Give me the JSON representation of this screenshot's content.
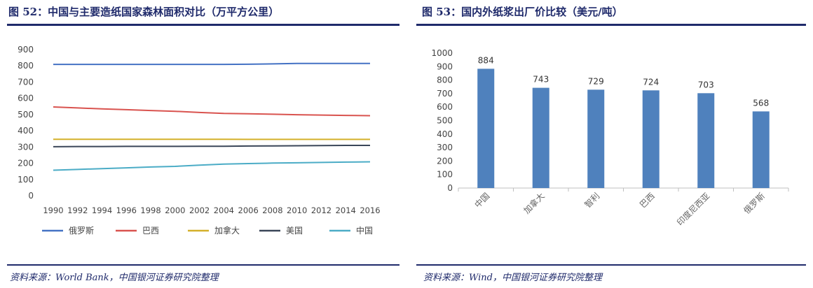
{
  "left_panel": {
    "title": "图 52：中国与主要造纸国家森林面积对比（万平方公里）",
    "source": "资料来源：World Bank，中国银河证券研究院整理"
  },
  "right_panel": {
    "title": "图 53：国内外纸浆出厂价比较（美元/吨）",
    "source": "资料来源：Wind，中国银河证券研究院整理"
  },
  "chart_data": [
    {
      "type": "line",
      "title": "",
      "xlabel": "",
      "ylabel": "",
      "ylim": [
        0,
        900
      ],
      "yticks": [
        0,
        100,
        200,
        300,
        400,
        500,
        600,
        700,
        800,
        900
      ],
      "x": [
        1990,
        1992,
        1994,
        1996,
        1998,
        2000,
        2002,
        2004,
        2006,
        2008,
        2010,
        2012,
        2014,
        2016
      ],
      "legend_position": "bottom",
      "grid": false,
      "series": [
        {
          "name": "俄罗斯",
          "color": "#4472c4",
          "values": [
            809,
            809,
            809,
            809,
            809,
            809,
            809,
            809,
            810,
            812,
            815,
            815,
            815,
            815
          ]
        },
        {
          "name": "巴西",
          "color": "#d9534f",
          "values": [
            547,
            541,
            535,
            530,
            525,
            520,
            513,
            507,
            505,
            502,
            499,
            497,
            495,
            493
          ]
        },
        {
          "name": "加拿大",
          "color": "#d4b02a",
          "values": [
            348,
            348,
            348,
            348,
            348,
            348,
            348,
            348,
            347,
            347,
            347,
            347,
            347,
            347
          ]
        },
        {
          "name": "美国",
          "color": "#3a4658",
          "values": [
            302,
            303,
            303,
            304,
            304,
            304,
            305,
            305,
            306,
            307,
            308,
            309,
            310,
            310
          ]
        },
        {
          "name": "中国",
          "color": "#4bacc6",
          "values": [
            157,
            162,
            167,
            172,
            177,
            181,
            188,
            195,
            198,
            201,
            203,
            205,
            207,
            209
          ]
        }
      ]
    },
    {
      "type": "bar",
      "title": "",
      "xlabel": "",
      "ylabel": "",
      "ylim": [
        0,
        1000
      ],
      "yticks": [
        0,
        100,
        200,
        300,
        400,
        500,
        600,
        700,
        800,
        900,
        1000
      ],
      "categories": [
        "中国",
        "加拿大",
        "智利",
        "巴西",
        "印度尼西亚",
        "俄罗斯"
      ],
      "values": [
        884,
        743,
        729,
        724,
        703,
        568
      ],
      "color": "#4f81bd",
      "grid": false
    }
  ]
}
